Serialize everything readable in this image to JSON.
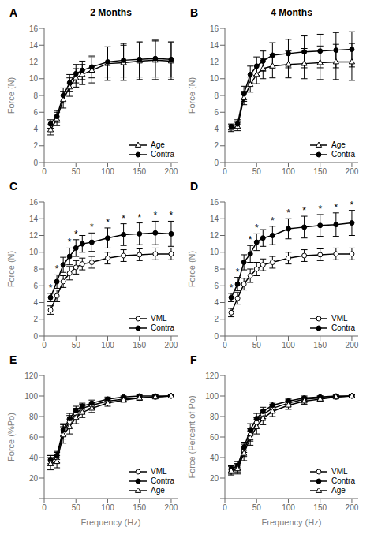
{
  "chart_data": [
    {
      "type": "line",
      "title": "2 Months",
      "y_label": "Force (N)",
      "x": [
        10,
        20,
        30,
        40,
        50,
        60,
        75,
        100,
        125,
        150,
        175,
        200
      ],
      "xlim": [
        0,
        210
      ],
      "xticks": [
        0,
        50,
        100,
        150,
        200
      ],
      "ylim": [
        0,
        16
      ],
      "yticks": [
        0,
        2,
        4,
        6,
        8,
        10,
        12,
        14,
        16
      ],
      "grid": false,
      "legend": "lower right",
      "annotations": [
        {
          "text": "A"
        }
      ],
      "series": [
        {
          "name": "Age",
          "color": "#000000",
          "marker": "triangle-open",
          "line_style": "solid",
          "values": [
            3.9,
            5.2,
            7.5,
            9.0,
            10.1,
            10.5,
            11.0,
            11.8,
            11.9,
            12.1,
            12.2,
            12.1
          ],
          "errors": [
            0.6,
            0.8,
            1.0,
            1.1,
            1.1,
            1.2,
            1.5,
            2.0,
            2.1,
            2.2,
            2.3,
            2.2
          ]
        },
        {
          "name": "Contra",
          "color": "#000000",
          "marker": "circle",
          "line_style": "solid",
          "values": [
            4.6,
            5.5,
            8.0,
            9.5,
            10.6,
            11.0,
            11.4,
            12.0,
            12.2,
            12.3,
            12.4,
            12.3
          ],
          "errors": [
            0.5,
            0.7,
            0.9,
            1.0,
            1.1,
            1.1,
            1.3,
            1.8,
            2.0,
            2.1,
            2.2,
            2.1
          ]
        }
      ]
    },
    {
      "type": "line",
      "title": "4 Months",
      "y_label": "Force (N)",
      "x": [
        10,
        20,
        30,
        40,
        50,
        60,
        75,
        100,
        125,
        150,
        175,
        200
      ],
      "xlim": [
        0,
        210
      ],
      "xticks": [
        0,
        50,
        100,
        150,
        200
      ],
      "ylim": [
        0,
        16
      ],
      "yticks": [
        0,
        2,
        4,
        6,
        8,
        10,
        12,
        14,
        16
      ],
      "grid": false,
      "legend": "lower right",
      "annotations": [
        {
          "text": "B"
        }
      ],
      "series": [
        {
          "name": "Age",
          "color": "#000000",
          "marker": "triangle-open",
          "line_style": "solid",
          "values": [
            4.1,
            4.3,
            7.7,
            9.3,
            10.5,
            11.2,
            11.5,
            11.7,
            11.8,
            11.9,
            12.0,
            12.0
          ],
          "errors": [
            0.4,
            0.5,
            0.8,
            0.9,
            1.1,
            1.2,
            1.4,
            1.6,
            1.8,
            2.0,
            2.1,
            2.2
          ]
        },
        {
          "name": "Contra",
          "color": "#000000",
          "marker": "circle",
          "line_style": "solid",
          "values": [
            4.3,
            4.6,
            8.2,
            10.5,
            11.5,
            12.1,
            12.8,
            13.0,
            13.2,
            13.3,
            13.4,
            13.5
          ],
          "errors": [
            0.3,
            0.5,
            0.9,
            1.0,
            1.1,
            1.2,
            1.5,
            1.7,
            1.9,
            2.0,
            2.1,
            2.1
          ]
        }
      ]
    },
    {
      "type": "line",
      "y_label": "Force (N)",
      "x": [
        10,
        20,
        30,
        40,
        50,
        60,
        75,
        100,
        125,
        150,
        175,
        200
      ],
      "xlim": [
        0,
        210
      ],
      "xticks": [
        0,
        50,
        100,
        150,
        200
      ],
      "ylim": [
        0,
        16
      ],
      "yticks": [
        0,
        2,
        4,
        6,
        8,
        10,
        12,
        14,
        16
      ],
      "grid": false,
      "legend": "lower right",
      "annotations": [
        {
          "text": "C"
        },
        {
          "text": "*",
          "x": 10,
          "series": "Contra"
        },
        {
          "text": "*",
          "x": 20,
          "series": "Contra"
        },
        {
          "text": "*",
          "x": 40,
          "series": "Contra"
        },
        {
          "text": "*",
          "x": 50,
          "series": "Contra"
        },
        {
          "text": "*",
          "x": 75,
          "series": "Contra"
        },
        {
          "text": "*",
          "x": 100,
          "series": "Contra"
        },
        {
          "text": "*",
          "x": 125,
          "series": "Contra"
        },
        {
          "text": "*",
          "x": 150,
          "series": "Contra"
        },
        {
          "text": "*",
          "x": 175,
          "series": "Contra"
        },
        {
          "text": "*",
          "x": 200,
          "series": "Contra"
        }
      ],
      "series": [
        {
          "name": "VML",
          "color": "#000000",
          "marker": "circle-open",
          "line_style": "solid",
          "values": [
            3.1,
            4.8,
            6.5,
            7.5,
            8.2,
            8.6,
            8.8,
            9.3,
            9.6,
            9.7,
            9.8,
            9.8
          ],
          "errors": [
            0.5,
            0.7,
            0.7,
            0.8,
            0.8,
            0.7,
            0.7,
            0.7,
            0.7,
            0.7,
            0.7,
            0.7
          ]
        },
        {
          "name": "Contra",
          "color": "#000000",
          "marker": "circle",
          "line_style": "solid",
          "values": [
            4.6,
            6.5,
            8.5,
            9.5,
            10.5,
            11.0,
            11.2,
            11.7,
            12.1,
            12.2,
            12.3,
            12.2
          ],
          "errors": [
            0.5,
            0.8,
            0.9,
            1.0,
            1.0,
            1.0,
            1.1,
            1.2,
            1.3,
            1.3,
            1.4,
            1.5
          ]
        }
      ]
    },
    {
      "type": "line",
      "y_label": "Force (N)",
      "x": [
        10,
        20,
        30,
        40,
        50,
        60,
        75,
        100,
        125,
        150,
        175,
        200
      ],
      "xlim": [
        0,
        210
      ],
      "xticks": [
        0,
        50,
        100,
        150,
        200
      ],
      "ylim": [
        0,
        16
      ],
      "yticks": [
        0,
        2,
        4,
        6,
        8,
        10,
        12,
        14,
        16
      ],
      "grid": false,
      "legend": "lower right",
      "annotations": [
        {
          "text": "D"
        },
        {
          "text": "*",
          "x": 10,
          "series": "Contra"
        },
        {
          "text": "*",
          "x": 20,
          "series": "Contra"
        },
        {
          "text": "*",
          "x": 40,
          "series": "Contra"
        },
        {
          "text": "*",
          "x": 50,
          "series": "Contra"
        },
        {
          "text": "*",
          "x": 75,
          "series": "Contra"
        },
        {
          "text": "*",
          "x": 100,
          "series": "Contra"
        },
        {
          "text": "*",
          "x": 125,
          "series": "Contra"
        },
        {
          "text": "*",
          "x": 150,
          "series": "Contra"
        },
        {
          "text": "*",
          "x": 175,
          "series": "Contra"
        },
        {
          "text": "*",
          "x": 200,
          "series": "Contra"
        }
      ],
      "series": [
        {
          "name": "VML",
          "color": "#000000",
          "marker": "circle-open",
          "line_style": "solid",
          "values": [
            2.8,
            4.5,
            6.2,
            7.2,
            8.0,
            8.5,
            8.8,
            9.3,
            9.6,
            9.7,
            9.8,
            9.8
          ],
          "errors": [
            0.5,
            0.7,
            0.7,
            0.8,
            0.8,
            0.7,
            0.7,
            0.7,
            0.7,
            0.7,
            0.7,
            0.7
          ]
        },
        {
          "name": "Contra",
          "color": "#000000",
          "marker": "circle",
          "line_style": "solid",
          "values": [
            4.6,
            6.2,
            8.8,
            9.8,
            11.2,
            11.7,
            12.0,
            12.8,
            13.0,
            13.2,
            13.3,
            13.5
          ],
          "errors": [
            0.5,
            0.8,
            0.9,
            1.0,
            1.0,
            1.0,
            1.1,
            1.2,
            1.3,
            1.3,
            1.4,
            1.5
          ]
        }
      ]
    },
    {
      "type": "line",
      "y_label": "Force (%Po)",
      "x_label": "Frequency (Hz)",
      "x": [
        10,
        20,
        30,
        40,
        50,
        60,
        75,
        100,
        125,
        150,
        175,
        200
      ],
      "xlim": [
        0,
        210
      ],
      "xticks": [
        0,
        50,
        100,
        150,
        200
      ],
      "ylim": [
        0,
        120
      ],
      "yticks": [
        {
          "value": 0,
          "label": ""
        },
        20,
        40,
        60,
        80,
        100,
        120
      ],
      "grid": false,
      "legend": "lower right",
      "annotations": [
        {
          "text": "E"
        }
      ],
      "series": [
        {
          "name": "VML",
          "color": "#000000",
          "marker": "circle-open",
          "line_style": "solid",
          "values": [
            37,
            40,
            65,
            75,
            83,
            88,
            91,
            95,
            97,
            98,
            99,
            100
          ],
          "errors": [
            5,
            5,
            7,
            6,
            5,
            4,
            3,
            2,
            2,
            2,
            1,
            1
          ]
        },
        {
          "name": "Contra",
          "color": "#000000",
          "marker": "circle",
          "line_style": "solid",
          "values": [
            38,
            42,
            67,
            78,
            86,
            90,
            93,
            97,
            99,
            100,
            100,
            100
          ],
          "errors": [
            4,
            4,
            6,
            5,
            4,
            3,
            3,
            2,
            1,
            1,
            1,
            1
          ]
        },
        {
          "name": "Age",
          "color": "#000000",
          "marker": "triangle-open",
          "line_style": "solid",
          "values": [
            34,
            36,
            62,
            70,
            79,
            84,
            88,
            93,
            96,
            98,
            99,
            100
          ],
          "errors": [
            6,
            6,
            8,
            7,
            6,
            5,
            4,
            3,
            2,
            2,
            1,
            1
          ]
        }
      ]
    },
    {
      "type": "line",
      "y_label": "Force (Percent of Po)",
      "x_label": "Frequency (Hz)",
      "x": [
        10,
        20,
        30,
        40,
        50,
        60,
        75,
        100,
        125,
        150,
        175,
        200
      ],
      "xlim": [
        0,
        210
      ],
      "xticks": [
        0,
        50,
        100,
        150,
        200
      ],
      "ylim": [
        0,
        120
      ],
      "yticks": [
        {
          "value": 0,
          "label": ""
        },
        20,
        40,
        60,
        80,
        100,
        120
      ],
      "grid": false,
      "legend": "lower right",
      "annotations": [
        {
          "text": "F"
        }
      ],
      "series": [
        {
          "name": "VML",
          "color": "#000000",
          "marker": "circle-open",
          "line_style": "solid",
          "values": [
            28,
            30,
            47,
            62,
            74,
            82,
            88,
            93,
            97,
            98,
            99,
            100
          ],
          "errors": [
            4,
            4,
            6,
            6,
            5,
            4,
            4,
            3,
            2,
            2,
            1,
            1
          ]
        },
        {
          "name": "Contra",
          "color": "#000000",
          "marker": "circle",
          "line_style": "solid",
          "values": [
            29,
            32,
            50,
            67,
            78,
            85,
            91,
            95,
            98,
            99,
            100,
            100
          ],
          "errors": [
            3,
            4,
            5,
            6,
            5,
            4,
            3,
            2,
            2,
            1,
            1,
            1
          ]
        },
        {
          "name": "Age",
          "color": "#000000",
          "marker": "triangle-open",
          "line_style": "solid",
          "values": [
            27,
            29,
            44,
            59,
            70,
            78,
            85,
            91,
            95,
            97,
            99,
            100
          ],
          "errors": [
            4,
            5,
            7,
            7,
            7,
            6,
            5,
            4,
            3,
            2,
            1,
            1
          ]
        }
      ]
    }
  ]
}
